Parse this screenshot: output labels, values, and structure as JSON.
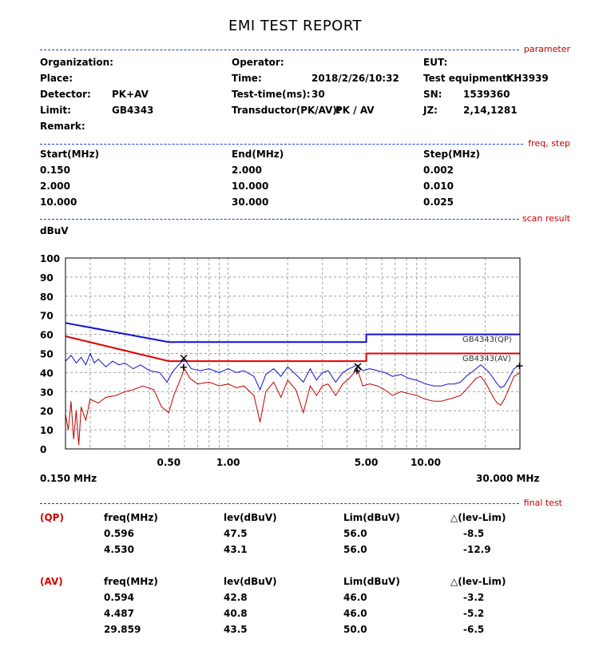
{
  "report": {
    "title": "EMI TEST REPORT"
  },
  "sections": {
    "parameter": "parameter",
    "freq_step": "freq, step",
    "scan_result": "scan result",
    "final_test": "final test"
  },
  "parameters": {
    "organization_label": "Organization:",
    "place_label": "Place:",
    "detector_label": "Detector:",
    "detector_value": "PK+AV",
    "limit_label": "Limit:",
    "limit_value": "GB4343",
    "remark_label": "Remark:",
    "operator_label": "Operator:",
    "time_label": "Time:",
    "time_value": "2018/2/26/10:32",
    "testtime_label": "Test-time(ms):",
    "testtime_value": "30",
    "transductor_label": "Transductor(PK/AV):",
    "transductor_value": "PK  /  AV",
    "eut_label": "EUT:",
    "equipment_label": "Test equipment:",
    "equipment_value": "KH3939",
    "sn_label": "SN:",
    "sn_value": "1539360",
    "jz_label": "JZ:",
    "jz_value": "2,14,1281"
  },
  "freq_step": {
    "headers": [
      "Start(MHz)",
      "End(MHz)",
      "Step(MHz)"
    ],
    "rows": [
      [
        "0.150",
        "2.000",
        "0.002"
      ],
      [
        "2.000",
        "10.000",
        "0.010"
      ],
      [
        "10.000",
        "30.000",
        "0.025"
      ]
    ]
  },
  "final_test": {
    "qp_label": "(QP)",
    "av_label": "(AV)",
    "headers": [
      "freq(MHz)",
      "lev(dBuV)",
      "Lim(dBuV)",
      "△(lev-Lim)"
    ],
    "qp_rows": [
      [
        "0.596",
        "47.5",
        "56.0",
        "-8.5"
      ],
      [
        "4.530",
        "43.1",
        "56.0",
        "-12.9"
      ]
    ],
    "av_rows": [
      [
        "0.594",
        "42.8",
        "46.0",
        "-3.2"
      ],
      [
        "4.487",
        "40.8",
        "46.0",
        "-5.2"
      ],
      [
        "29.859",
        "43.5",
        "50.0",
        "-6.5"
      ]
    ]
  },
  "chart_data": {
    "type": "line",
    "ylabel": "dBuV",
    "x_scale": "log",
    "xlim": [
      0.15,
      30
    ],
    "ylim": [
      0,
      100
    ],
    "y_ticks": [
      "100",
      "90",
      "80",
      "70",
      "60",
      "50",
      "40",
      "30",
      "20",
      "10",
      "0"
    ],
    "x_ticks": [
      {
        "value": 0.5,
        "label": "0.50"
      },
      {
        "value": 1,
        "label": "1.00"
      },
      {
        "value": 5,
        "label": "5.00"
      },
      {
        "value": 10,
        "label": "10.00"
      }
    ],
    "x_start_label": "0.150 MHz",
    "x_end_label": "30.000 MHz",
    "grid": true,
    "colors": {
      "limit_qp": "#1010d0",
      "limit_av": "#e00000",
      "scan_pk": "#1010d0",
      "scan_av": "#c00000",
      "grid": "#a0a0a0",
      "marker": "#000000"
    },
    "limits": [
      {
        "name": "GB4343(QP)",
        "points": [
          [
            0.15,
            66
          ],
          [
            0.5,
            56
          ],
          [
            5,
            56
          ],
          [
            5,
            60
          ],
          [
            30,
            60
          ]
        ]
      },
      {
        "name": "GB4343(AV)",
        "points": [
          [
            0.15,
            59
          ],
          [
            0.5,
            46
          ],
          [
            5,
            46
          ],
          [
            5,
            50
          ],
          [
            30,
            50
          ]
        ]
      }
    ],
    "series": [
      {
        "points": [
          [
            0.15,
            46
          ],
          [
            0.16,
            49
          ],
          [
            0.17,
            45
          ],
          [
            0.18,
            48
          ],
          [
            0.19,
            44
          ],
          [
            0.2,
            50
          ],
          [
            0.21,
            45
          ],
          [
            0.22,
            47
          ],
          [
            0.24,
            43
          ],
          [
            0.26,
            46
          ],
          [
            0.28,
            44
          ],
          [
            0.3,
            45
          ],
          [
            0.33,
            42
          ],
          [
            0.36,
            44
          ],
          [
            0.4,
            41
          ],
          [
            0.45,
            40
          ],
          [
            0.49,
            35
          ],
          [
            0.52,
            40
          ],
          [
            0.56,
            44
          ],
          [
            0.6,
            47
          ],
          [
            0.65,
            42
          ],
          [
            0.72,
            41
          ],
          [
            0.8,
            42
          ],
          [
            0.9,
            40
          ],
          [
            1.0,
            42
          ],
          [
            1.1,
            40
          ],
          [
            1.2,
            41
          ],
          [
            1.35,
            38
          ],
          [
            1.45,
            31
          ],
          [
            1.55,
            39
          ],
          [
            1.7,
            42
          ],
          [
            1.85,
            38
          ],
          [
            2.0,
            43
          ],
          [
            2.2,
            39
          ],
          [
            2.4,
            35
          ],
          [
            2.6,
            42
          ],
          [
            2.8,
            36
          ],
          [
            3.0,
            40
          ],
          [
            3.2,
            41
          ],
          [
            3.5,
            35
          ],
          [
            3.8,
            40
          ],
          [
            4.1,
            42
          ],
          [
            4.5,
            44
          ],
          [
            4.8,
            41
          ],
          [
            5.2,
            42
          ],
          [
            5.7,
            41
          ],
          [
            6.2,
            40
          ],
          [
            6.8,
            38
          ],
          [
            7.5,
            39
          ],
          [
            8.2,
            37
          ],
          [
            9.0,
            36
          ],
          [
            10,
            34
          ],
          [
            11,
            33
          ],
          [
            12,
            33
          ],
          [
            13,
            34
          ],
          [
            14,
            34
          ],
          [
            15,
            35
          ],
          [
            16,
            38
          ],
          [
            17,
            40
          ],
          [
            18,
            42
          ],
          [
            19,
            44
          ],
          [
            20,
            42
          ],
          [
            21,
            40
          ],
          [
            22,
            37
          ],
          [
            23,
            34
          ],
          [
            24,
            32
          ],
          [
            25,
            33
          ],
          [
            26,
            36
          ],
          [
            27,
            39
          ],
          [
            28,
            42
          ],
          [
            30,
            44
          ]
        ]
      },
      {
        "points": [
          [
            0.15,
            18
          ],
          [
            0.155,
            10
          ],
          [
            0.16,
            25
          ],
          [
            0.165,
            5
          ],
          [
            0.17,
            20
          ],
          [
            0.175,
            2
          ],
          [
            0.18,
            22
          ],
          [
            0.19,
            15
          ],
          [
            0.2,
            26
          ],
          [
            0.22,
            24
          ],
          [
            0.24,
            27
          ],
          [
            0.27,
            28
          ],
          [
            0.3,
            30
          ],
          [
            0.33,
            31
          ],
          [
            0.37,
            33
          ],
          [
            0.42,
            31
          ],
          [
            0.46,
            22
          ],
          [
            0.5,
            19
          ],
          [
            0.53,
            28
          ],
          [
            0.57,
            36
          ],
          [
            0.6,
            42
          ],
          [
            0.64,
            37
          ],
          [
            0.7,
            34
          ],
          [
            0.8,
            35
          ],
          [
            0.9,
            33
          ],
          [
            1.0,
            34
          ],
          [
            1.1,
            32
          ],
          [
            1.2,
            33
          ],
          [
            1.35,
            28
          ],
          [
            1.45,
            14
          ],
          [
            1.55,
            30
          ],
          [
            1.7,
            35
          ],
          [
            1.85,
            27
          ],
          [
            2.0,
            36
          ],
          [
            2.2,
            31
          ],
          [
            2.4,
            19
          ],
          [
            2.6,
            33
          ],
          [
            2.8,
            28
          ],
          [
            3.0,
            33
          ],
          [
            3.2,
            34
          ],
          [
            3.5,
            28
          ],
          [
            3.8,
            34
          ],
          [
            4.1,
            37
          ],
          [
            4.5,
            42
          ],
          [
            4.8,
            33
          ],
          [
            5.2,
            34
          ],
          [
            5.7,
            33
          ],
          [
            6.2,
            31
          ],
          [
            6.8,
            28
          ],
          [
            7.5,
            30
          ],
          [
            8.2,
            29
          ],
          [
            9.0,
            28
          ],
          [
            10,
            26
          ],
          [
            11,
            25
          ],
          [
            12,
            25
          ],
          [
            13,
            26
          ],
          [
            14,
            27
          ],
          [
            15,
            28
          ],
          [
            16,
            31
          ],
          [
            17,
            34
          ],
          [
            18,
            37
          ],
          [
            19,
            38
          ],
          [
            20,
            35
          ],
          [
            21,
            31
          ],
          [
            22,
            27
          ],
          [
            23,
            24
          ],
          [
            24,
            23
          ],
          [
            25,
            26
          ],
          [
            26,
            30
          ],
          [
            27,
            34
          ],
          [
            28,
            38
          ],
          [
            30,
            40
          ]
        ]
      }
    ],
    "markers": [
      {
        "detector": "QP",
        "freq": 0.596,
        "level": 47.5,
        "symbol": "x"
      },
      {
        "detector": "QP",
        "freq": 4.53,
        "level": 43.1,
        "symbol": "x"
      },
      {
        "detector": "AV",
        "freq": 0.594,
        "level": 42.8,
        "symbol": "+"
      },
      {
        "detector": "AV",
        "freq": 4.487,
        "level": 40.8,
        "symbol": "+"
      },
      {
        "detector": "AV",
        "freq": 29.859,
        "level": 43.5,
        "symbol": "+"
      }
    ]
  }
}
